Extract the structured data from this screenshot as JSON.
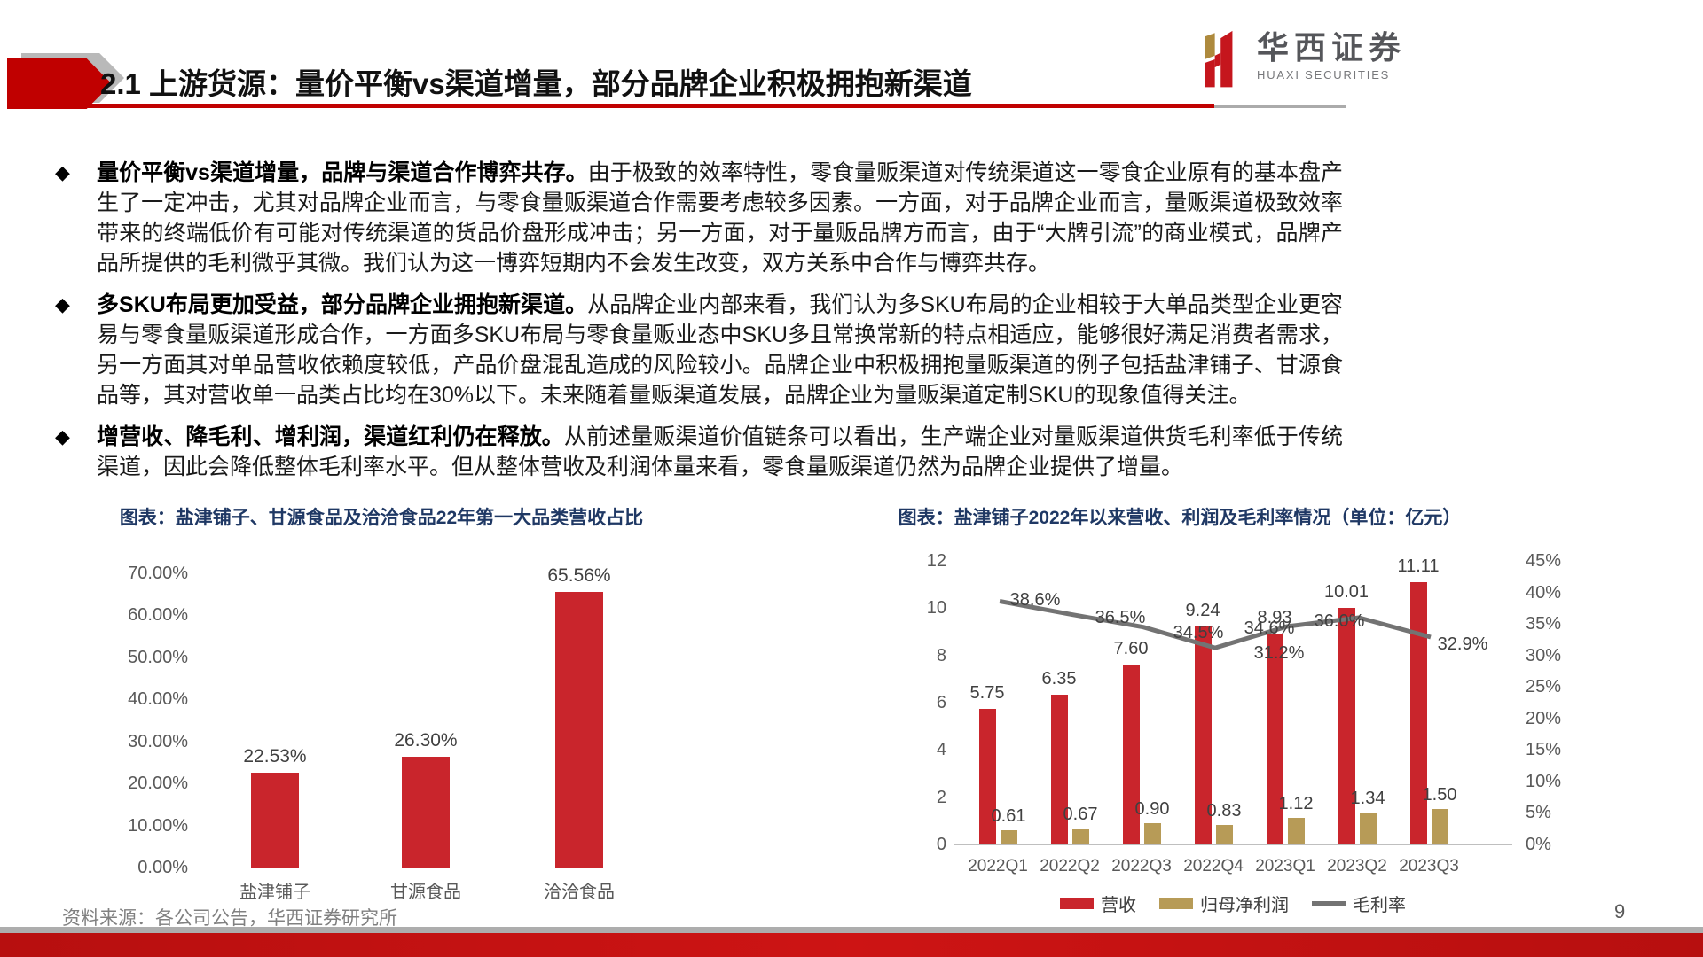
{
  "header": {
    "title": "2.1 上游货源：量价平衡vs渠道增量，部分品牌企业积极拥抱新渠道",
    "logo_cn": "华西证券",
    "logo_en": "HUAXI SECURITIES"
  },
  "bullets": [
    {
      "lead": "量价平衡vs渠道增量，品牌与渠道合作博弈共存。",
      "body": "由于极致的效率特性，零食量贩渠道对传统渠道这一零食企业原有的基本盘产生了一定冲击，尤其对品牌企业而言，与零食量贩渠道合作需要考虑较多因素。一方面，对于品牌企业而言，量贩渠道极致效率带来的终端低价有可能对传统渠道的货品价盘形成冲击；另一方面，对于量贩品牌方而言，由于“大牌引流”的商业模式，品牌产品所提供的毛利微乎其微。我们认为这一博弈短期内不会发生改变，双方关系中合作与博弈共存。"
    },
    {
      "lead": "多SKU布局更加受益，部分品牌企业拥抱新渠道。",
      "body": "从品牌企业内部来看，我们认为多SKU布局的企业相较于大单品类型企业更容易与零食量贩渠道形成合作，一方面多SKU布局与零食量贩业态中SKU多且常换常新的特点相适应，能够很好满足消费者需求，另一方面其对单品营收依赖度较低，产品价盘混乱造成的风险较小。品牌企业中积极拥抱量贩渠道的例子包括盐津铺子、甘源食品等，其对营收单一品类占比均在30%以下。未来随着量贩渠道发展，品牌企业为量贩渠道定制SKU的现象值得关注。"
    },
    {
      "lead": "增营收、降毛利、增利润，渠道红利仍在释放。",
      "body": "从前述量贩渠道价值链条可以看出，生产端企业对量贩渠道供货毛利率低于传统渠道，因此会降低整体毛利率水平。但从整体营收及利润体量来看，零食量贩渠道仍然为品牌企业提供了增量。"
    }
  ],
  "chart_data": [
    {
      "type": "bar",
      "title": "图表：盐津铺子、甘源食品及洽洽食品22年第一大品类营收占比",
      "categories": [
        "盐津铺子",
        "甘源食品",
        "洽洽食品"
      ],
      "values": [
        22.53,
        26.3,
        65.56
      ],
      "value_labels": [
        "22.53%",
        "26.30%",
        "65.56%"
      ],
      "y_ticks": [
        "70.00%",
        "60.00%",
        "50.00%",
        "40.00%",
        "30.00%",
        "20.00%",
        "10.00%",
        "0.00%"
      ],
      "ylim": [
        0,
        70
      ],
      "bar_color": "#c9252c",
      "grid": false,
      "legend_position": "none"
    },
    {
      "type": "bar+line",
      "title": "图表：盐津铺子2022年以来营收、利润及毛利率情况（单位：亿元）",
      "categories": [
        "2022Q1",
        "2022Q2",
        "2022Q3",
        "2022Q4",
        "2023Q1",
        "2023Q2",
        "2023Q3"
      ],
      "series": [
        {
          "name": "营收",
          "type": "bar",
          "color": "#c9252c",
          "values": [
            5.75,
            6.35,
            7.6,
            9.24,
            8.93,
            10.01,
            11.11
          ],
          "labels": [
            "5.75",
            "6.35",
            "7.60",
            "9.24",
            "8.93",
            "10.01",
            "11.11"
          ]
        },
        {
          "name": "归母净利润",
          "type": "bar",
          "color": "#b79b57",
          "values": [
            0.61,
            0.67,
            0.9,
            0.83,
            1.12,
            1.34,
            1.5
          ],
          "labels": [
            "0.61",
            "0.67",
            "0.90",
            "0.83",
            "1.12",
            "1.34",
            "1.50"
          ]
        },
        {
          "name": "毛利率",
          "type": "line",
          "color": "#737373",
          "values": [
            38.6,
            36.5,
            34.5,
            31.2,
            34.6,
            36.0,
            32.9
          ],
          "labels": [
            "38.6%",
            "36.5%",
            "34.5%",
            "31.2%",
            "34.6%",
            "36.0%",
            "32.9%"
          ]
        }
      ],
      "left_axis": {
        "ticks": [
          "12",
          "10",
          "8",
          "6",
          "4",
          "2",
          "0"
        ],
        "max": 12
      },
      "right_axis": {
        "ticks": [
          "45%",
          "40%",
          "35%",
          "30%",
          "25%",
          "20%",
          "15%",
          "10%",
          "5%",
          "0%"
        ],
        "max": 45
      },
      "legend": [
        "营收",
        "归母净利润",
        "毛利率"
      ],
      "legend_position": "bottom",
      "grid": false
    }
  ],
  "footer": {
    "source": "资料来源：各公司公告，华西证券研究所",
    "page_number": "9"
  }
}
